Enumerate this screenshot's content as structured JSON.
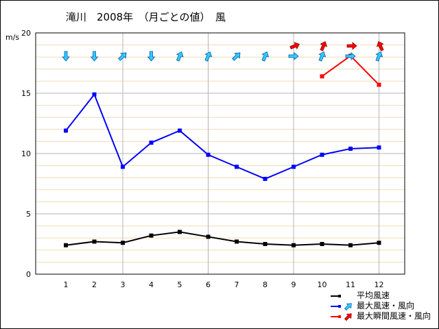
{
  "title": "滝川　2008年　（月ごとの値）　風",
  "chart_data": {
    "type": "line",
    "ylabel": "m/s",
    "ylim": [
      0,
      20
    ],
    "yticks": [
      "0",
      "5",
      "10",
      "15",
      "20"
    ],
    "categories": [
      "1",
      "2",
      "3",
      "4",
      "5",
      "6",
      "7",
      "8",
      "9",
      "10",
      "11",
      "12"
    ],
    "grid": true,
    "legend_position": "bottom-right",
    "series": [
      {
        "name": "平均風速",
        "color": "#000000",
        "values": [
          2.4,
          2.7,
          2.6,
          3.2,
          3.5,
          3.1,
          2.7,
          2.5,
          2.4,
          2.5,
          2.4,
          2.6
        ]
      },
      {
        "name": "最大風速・風向",
        "color": "#0000ff",
        "arrow_color": "#33ccff",
        "values": [
          11.9,
          14.9,
          8.9,
          10.9,
          11.9,
          9.9,
          8.9,
          7.9,
          8.9,
          9.9,
          10.4,
          10.5
        ],
        "directions": [
          "N",
          "N",
          "SW",
          "N",
          "SSW",
          "SSW",
          "SW",
          "SSW",
          "W",
          "SSW",
          "W",
          "SSW"
        ]
      },
      {
        "name": "最大瞬間風速・風向",
        "color": "#ff0000",
        "arrow_color": "#ff0000",
        "values": [
          null,
          null,
          null,
          null,
          null,
          null,
          null,
          null,
          null,
          16.4,
          18.1,
          15.7
        ],
        "directions": [
          null,
          null,
          null,
          null,
          null,
          null,
          null,
          null,
          "WSW",
          "SSW",
          "W",
          "SSE"
        ]
      }
    ]
  }
}
